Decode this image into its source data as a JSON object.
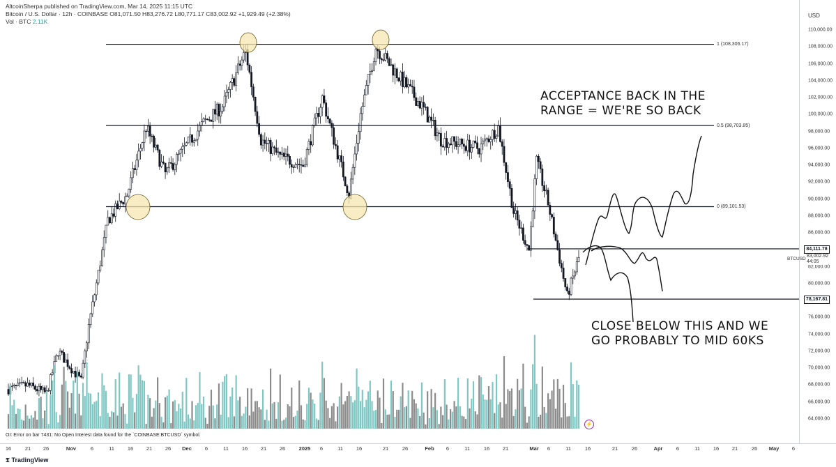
{
  "header": {
    "line1": "AltcoinSherpa published on TradingView.com, Mar 14, 2025 11:15 UTC",
    "line2_label": "Vol · BTC",
    "line2_value": "2.11K",
    "ohlc": "Bitcoin / U.S. Dollar · 12h · COINBASE  O81,071.50  H83,276.72  L80,771.17  C83,002.92  +1,929.49 (+2.38%)"
  },
  "axis": {
    "currency": "USD",
    "ticks": [
      "110,000.00",
      "108,000.00",
      "106,000.00",
      "104,000.00",
      "102,000.00",
      "100,000.00",
      "98,000.00",
      "96,000.00",
      "94,000.00",
      "92,000.00",
      "90,000.00",
      "88,000.00",
      "86,000.00",
      "82,000.00",
      "80,000.00",
      "76,000.00",
      "74,000.00",
      "72,000.00",
      "70,000.00",
      "68,000.00",
      "66,000.00",
      "64,000.00"
    ],
    "price_boxes": [
      "84,111.78",
      "78,167.81"
    ],
    "symbol": "BTCUSD",
    "last_price": "83,002.92",
    "countdown": "44:05"
  },
  "fib_levels": [
    "1 (108,306.17)",
    "0.5 (98,703.85)",
    "0 (89,101.53)"
  ],
  "annotations": {
    "top": [
      "ACCEPTANCE BACK IN THE",
      "RANGE = WE'RE SO BACK"
    ],
    "bottom": [
      "CLOSE BELOW THIS AND WE",
      "GO PROBABLY TO MID 60KS"
    ]
  },
  "time_axis": [
    "16",
    "21",
    "26",
    "Nov",
    "6",
    "11",
    "16",
    "21",
    "26",
    "Dec",
    "6",
    "11",
    "16",
    "21",
    "26",
    "2025",
    "6",
    "11",
    "16",
    "21",
    "26",
    "Feb",
    "6",
    "11",
    "16",
    "21",
    "Mar",
    "6",
    "11",
    "16",
    "21",
    "26",
    "Apr",
    "6",
    "11",
    "16",
    "21",
    "26",
    "May",
    "6"
  ],
  "status_message": "OI: Error on bar 7431: No Open Interest data found for the `COINBASE:BTCUSD` symbol.",
  "brand": "TradingView",
  "colors": {
    "volume_up": "#7ec8c4",
    "volume_down": "#8c8c8c",
    "candle": "#131722",
    "level_line": "#131722",
    "highlight_circle": "#f5e7b0"
  },
  "chart_data": {
    "type": "candlestick",
    "symbol": "BTCUSD",
    "timeframe": "12h",
    "ylim": [
      63000,
      111000
    ],
    "horizontal_levels": [
      108306.17,
      98703.85,
      89101.53,
      84111.78,
      78167.81
    ],
    "approx_close_path": [
      {
        "date": "2024-10-16",
        "close": 67500
      },
      {
        "date": "2024-10-21",
        "close": 68000
      },
      {
        "date": "2024-10-26",
        "close": 67000
      },
      {
        "date": "2024-10-29",
        "close": 72000
      },
      {
        "date": "2024-11-04",
        "close": 68500
      },
      {
        "date": "2024-11-06",
        "close": 75000
      },
      {
        "date": "2024-11-11",
        "close": 87500
      },
      {
        "date": "2024-11-16",
        "close": 90500
      },
      {
        "date": "2024-11-21",
        "close": 98500
      },
      {
        "date": "2024-11-26",
        "close": 93000
      },
      {
        "date": "2024-12-06",
        "close": 99000
      },
      {
        "date": "2024-12-11",
        "close": 101000
      },
      {
        "date": "2024-12-17",
        "close": 107500
      },
      {
        "date": "2024-12-21",
        "close": 97000
      },
      {
        "date": "2024-12-26",
        "close": 95000
      },
      {
        "date": "2025-01-01",
        "close": 94000
      },
      {
        "date": "2025-01-06",
        "close": 102000
      },
      {
        "date": "2025-01-13",
        "close": 90500
      },
      {
        "date": "2025-01-16",
        "close": 100000
      },
      {
        "date": "2025-01-20",
        "close": 108000
      },
      {
        "date": "2025-01-26",
        "close": 104500
      },
      {
        "date": "2025-02-01",
        "close": 101000
      },
      {
        "date": "2025-02-06",
        "close": 97000
      },
      {
        "date": "2025-02-11",
        "close": 96500
      },
      {
        "date": "2025-02-16",
        "close": 96000
      },
      {
        "date": "2025-02-21",
        "close": 98500
      },
      {
        "date": "2025-02-25",
        "close": 88500
      },
      {
        "date": "2025-03-01",
        "close": 84000
      },
      {
        "date": "2025-03-03",
        "close": 94500
      },
      {
        "date": "2025-03-06",
        "close": 89500
      },
      {
        "date": "2025-03-11",
        "close": 78500
      },
      {
        "date": "2025-03-14",
        "close": 83002.92
      }
    ]
  }
}
